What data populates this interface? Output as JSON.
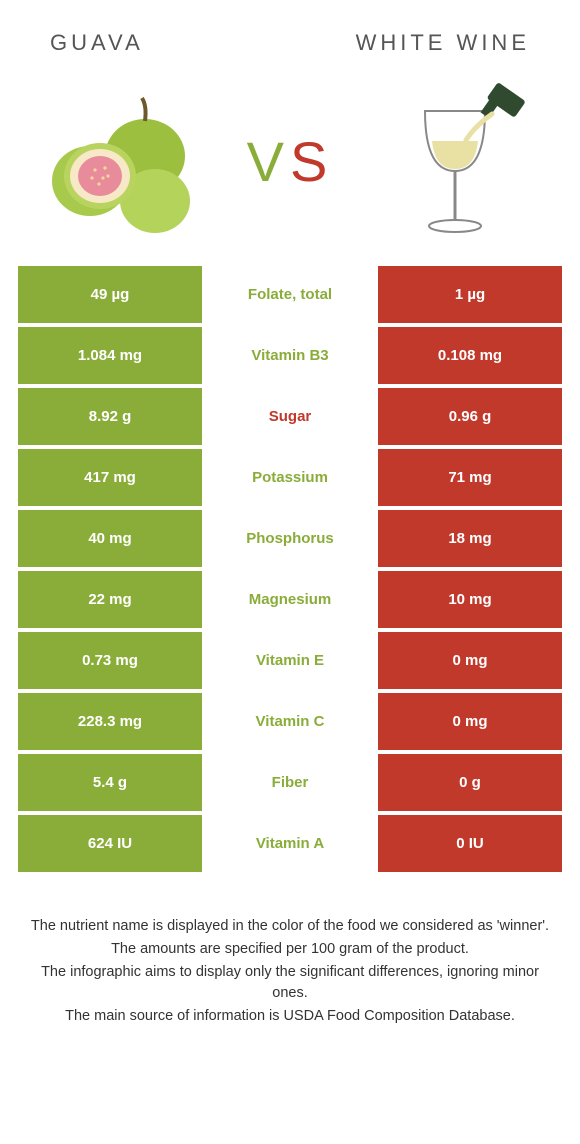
{
  "header": {
    "left": "GUAVA",
    "right": "WHITE WINE"
  },
  "vs": {
    "v": "V",
    "s": "S"
  },
  "colors": {
    "left_bg": "#8aad3a",
    "right_bg": "#c0392b",
    "mid_green": "#8aad3a",
    "mid_red": "#c0392b"
  },
  "rows": [
    {
      "left": "49 µg",
      "label": "Folate, total",
      "right": "1 µg",
      "winner": "left"
    },
    {
      "left": "1.084 mg",
      "label": "Vitamin B3",
      "right": "0.108 mg",
      "winner": "left"
    },
    {
      "left": "8.92 g",
      "label": "Sugar",
      "right": "0.96 g",
      "winner": "right"
    },
    {
      "left": "417 mg",
      "label": "Potassium",
      "right": "71 mg",
      "winner": "left"
    },
    {
      "left": "40 mg",
      "label": "Phosphorus",
      "right": "18 mg",
      "winner": "left"
    },
    {
      "left": "22 mg",
      "label": "Magnesium",
      "right": "10 mg",
      "winner": "left"
    },
    {
      "left": "0.73 mg",
      "label": "Vitamin E",
      "right": "0 mg",
      "winner": "left"
    },
    {
      "left": "228.3 mg",
      "label": "Vitamin C",
      "right": "0 mg",
      "winner": "left"
    },
    {
      "left": "5.4 g",
      "label": "Fiber",
      "right": "0 g",
      "winner": "left"
    },
    {
      "left": "624 IU",
      "label": "Vitamin A",
      "right": "0 IU",
      "winner": "left"
    }
  ],
  "footer": [
    "The nutrient name is displayed in the color of the food we considered as 'winner'.",
    "The amounts are specified per 100 gram of the product.",
    "The infographic aims to display only the significant differences, ignoring minor ones.",
    "The main source of information is USDA Food Composition Database."
  ]
}
